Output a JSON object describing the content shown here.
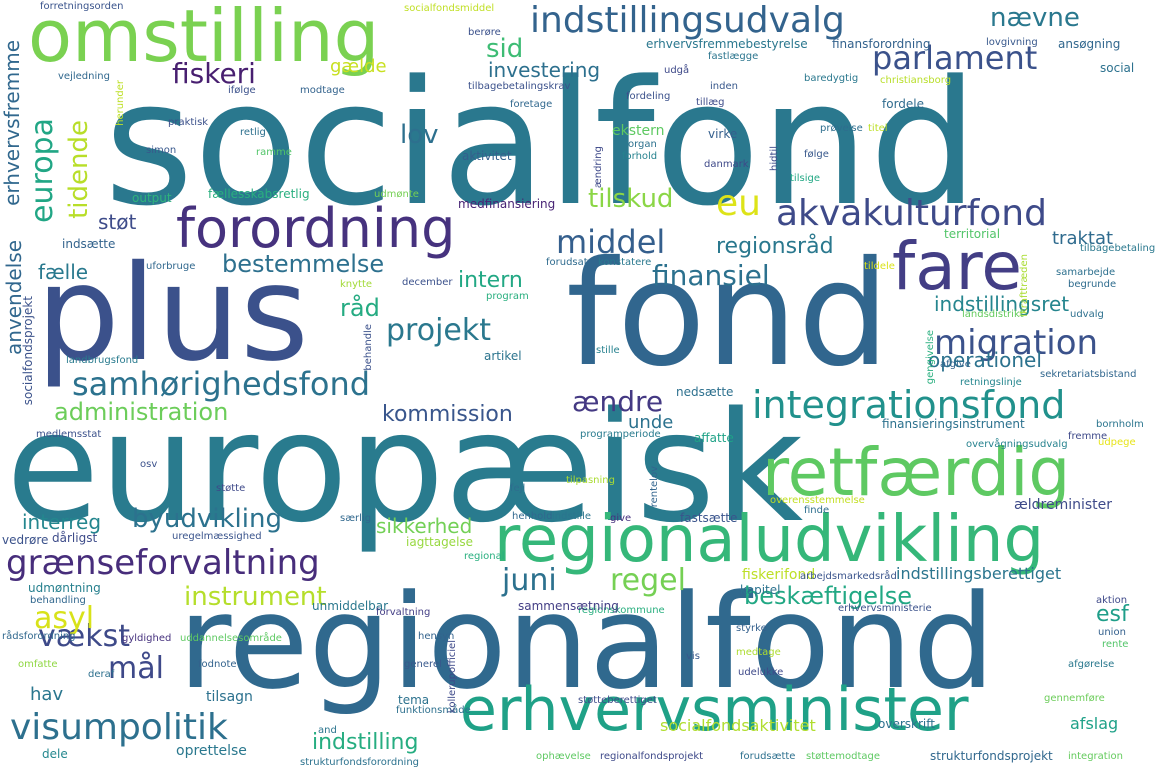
{
  "words": [
    {
      "text": "socialfond",
      "color": "#2a788e"
    },
    {
      "text": "europæisk",
      "color": "#297b8e"
    },
    {
      "text": "regionalfond",
      "color": "#30698e"
    },
    {
      "text": "fond",
      "color": "#31668e"
    },
    {
      "text": "plus",
      "color": "#3b518b"
    },
    {
      "text": "omstilling",
      "color": "#7ad151"
    },
    {
      "text": "retfærdig",
      "color": "#5ec962"
    },
    {
      "text": "regionaludvikling",
      "color": "#35b779"
    },
    {
      "text": "erhvervsminister",
      "color": "#1fa187"
    },
    {
      "text": "forordning",
      "color": "#46327e"
    },
    {
      "text": "fare",
      "color": "#433e85"
    },
    {
      "text": "indstillingsudvalg",
      "color": "#33638d"
    },
    {
      "text": "akvakulturfond",
      "color": "#3e4a89"
    },
    {
      "text": "integrationsfond",
      "color": "#21918c"
    },
    {
      "text": "grænseforvaltning",
      "color": "#472d7b"
    },
    {
      "text": "samhørighedsfond",
      "color": "#2c728e"
    },
    {
      "text": "visumpolitik",
      "color": "#2d708e"
    },
    {
      "text": "migration",
      "color": "#3b528b"
    },
    {
      "text": "parlament",
      "color": "#3b528b"
    },
    {
      "text": "middel",
      "color": "#355f8d"
    },
    {
      "text": "europa",
      "color": "#21a685"
    },
    {
      "text": "eu",
      "color": "#dde318"
    },
    {
      "text": "fiskeri",
      "color": "#481f70"
    },
    {
      "text": "projekt",
      "color": "#2a788e"
    },
    {
      "text": "byudvikling",
      "color": "#2c728e"
    },
    {
      "text": "instrument",
      "color": "#b5de2b"
    },
    {
      "text": "vækst",
      "color": "#3e4a89"
    },
    {
      "text": "regel",
      "color": "#75d054"
    },
    {
      "text": "tidende",
      "color": "#b8de29"
    },
    {
      "text": "finansiel",
      "color": "#2c718e"
    },
    {
      "text": "juni",
      "color": "#2c718e"
    },
    {
      "text": "mål",
      "color": "#3e4989"
    },
    {
      "text": "asyl",
      "color": "#d8e219"
    },
    {
      "text": "administration",
      "color": "#6ccd5a"
    },
    {
      "text": "kommission",
      "color": "#39568c"
    },
    {
      "text": "bestemmelse",
      "color": "#2d708e"
    },
    {
      "text": "beskæftigelse",
      "color": "#22a884"
    },
    {
      "text": "indstilling",
      "color": "#26ad81"
    },
    {
      "text": "ændre",
      "color": "#443983"
    },
    {
      "text": "råd",
      "color": "#25ab82"
    },
    {
      "text": "tilskud",
      "color": "#8bd646"
    },
    {
      "text": "regionsråd",
      "color": "#2a788e"
    },
    {
      "text": "intern",
      "color": "#22a884"
    },
    {
      "text": "operationel",
      "color": "#2c728e"
    },
    {
      "text": "indstillingsret",
      "color": "#25858e"
    },
    {
      "text": "lov",
      "color": "#2d708e"
    },
    {
      "text": "sid",
      "color": "#3dbc74"
    },
    {
      "text": "nævne",
      "color": "#2a788e"
    },
    {
      "text": "investering",
      "color": "#2d708e"
    },
    {
      "text": "gælde",
      "color": "#c8e020"
    },
    {
      "text": "traktat",
      "color": "#2f6b8e"
    },
    {
      "text": "interreg",
      "color": "#24868e"
    },
    {
      "text": "sikkerhed",
      "color": "#73d056"
    },
    {
      "text": "esf",
      "color": "#1f9e89"
    },
    {
      "text": "unde",
      "color": "#2c728e"
    },
    {
      "text": "støt",
      "color": "#3e4c8a"
    },
    {
      "text": "fælle",
      "color": "#29798e"
    },
    {
      "text": "hav",
      "color": "#2a768e"
    },
    {
      "text": "erhvervsfremme",
      "color": "#31688e"
    },
    {
      "text": "anvendelse",
      "color": "#31678e"
    },
    {
      "text": "fiskerifond",
      "color": "#bddf26"
    },
    {
      "text": "indstillingsberettiget",
      "color": "#2b758e"
    },
    {
      "text": "socialfondsaktivitet",
      "color": "#b0dd2f"
    },
    {
      "text": "afslag",
      "color": "#1fa188"
    },
    {
      "text": "forretningsorden",
      "color": "#3a548c"
    },
    {
      "text": "socialfondsmiddel",
      "color": "#c0df25"
    },
    {
      "text": "erhvervsfremmebestyrelse",
      "color": "#2a778e"
    },
    {
      "text": "finansforordning",
      "color": "#33628d"
    },
    {
      "text": "ansøgning",
      "color": "#31678e"
    },
    {
      "text": "social",
      "color": "#2c718e"
    },
    {
      "text": "lovgivning",
      "color": "#38588c"
    },
    {
      "text": "tilbagebetalingskrav",
      "color": "#3b518b"
    },
    {
      "text": "christiansborg",
      "color": "#b8de29"
    },
    {
      "text": "baredygtig",
      "color": "#2a788e"
    },
    {
      "text": "fordele",
      "color": "#2f6b8e"
    },
    {
      "text": "medfinansiering",
      "color": "#482475"
    },
    {
      "text": "fællesskabsretlig",
      "color": "#29af7f"
    },
    {
      "text": "aktivitet",
      "color": "#34608d"
    },
    {
      "text": "ekstern",
      "color": "#5ec962"
    },
    {
      "text": "virke",
      "color": "#355f8d"
    },
    {
      "text": "prøvelse",
      "color": "#2e6e8e"
    },
    {
      "text": "danmark",
      "color": "#3e4989"
    },
    {
      "text": "output",
      "color": "#2fb47c"
    },
    {
      "text": "territorial",
      "color": "#52c569"
    },
    {
      "text": "samarbejde",
      "color": "#2d708e"
    },
    {
      "text": "begrunde",
      "color": "#2f6c8e"
    },
    {
      "text": "tildele",
      "color": "#dae319"
    },
    {
      "text": "konstatere",
      "color": "#2a788e"
    },
    {
      "text": "forudsat",
      "color": "#2f6b8e"
    },
    {
      "text": "december",
      "color": "#3b518b"
    },
    {
      "text": "knytte",
      "color": "#a2da37"
    },
    {
      "text": "program",
      "color": "#29af7f"
    },
    {
      "text": "artikel",
      "color": "#2b748e"
    },
    {
      "text": "stille",
      "color": "#26818e"
    },
    {
      "text": "landsdistrikt",
      "color": "#65cb5e"
    },
    {
      "text": "udvalg",
      "color": "#2d708e"
    },
    {
      "text": "afgive",
      "color": "#33638d"
    },
    {
      "text": "sekretariatsbistand",
      "color": "#31678e"
    },
    {
      "text": "retningslinje",
      "color": "#24868e"
    },
    {
      "text": "nedsætte",
      "color": "#2d708e"
    },
    {
      "text": "medlemsstat",
      "color": "#3b518b"
    },
    {
      "text": "programperiode",
      "color": "#297b8e"
    },
    {
      "text": "affatte",
      "color": "#1fa287"
    },
    {
      "text": "finansieringsinstrument",
      "color": "#2c718e"
    },
    {
      "text": "bornholm",
      "color": "#2b758e"
    },
    {
      "text": "fremme",
      "color": "#3e4989"
    },
    {
      "text": "overvågningsudvalg",
      "color": "#26828e"
    },
    {
      "text": "udpege",
      "color": "#e7e419"
    },
    {
      "text": "ældreminister",
      "color": "#3e4a89"
    },
    {
      "text": "fastsætte",
      "color": "#3a548c"
    },
    {
      "text": "henhold",
      "color": "#31688e"
    },
    {
      "text": "indstille",
      "color": "#2b758e"
    },
    {
      "text": "overensstemmelse",
      "color": "#c2df23"
    },
    {
      "text": "finde",
      "color": "#2e6f8e"
    },
    {
      "text": "give",
      "color": "#46317e"
    },
    {
      "text": "tilpasning",
      "color": "#aadc32"
    },
    {
      "text": "rentelov",
      "color": "#32658e"
    },
    {
      "text": "fejl",
      "color": "#2e6e8e"
    },
    {
      "text": "dårligst",
      "color": "#3e4c8a"
    },
    {
      "text": "særlig",
      "color": "#31688e"
    },
    {
      "text": "iagttagelse",
      "color": "#97d83f"
    },
    {
      "text": "uregelmæssighed",
      "color": "#3a548c"
    },
    {
      "text": "vedrøre",
      "color": "#3b528b"
    },
    {
      "text": "regional",
      "color": "#29af7f"
    },
    {
      "text": "udmøntning",
      "color": "#27808e"
    },
    {
      "text": "behandling",
      "color": "#31678e"
    },
    {
      "text": "unmiddelbar",
      "color": "#2a788e"
    },
    {
      "text": "kapitel",
      "color": "#2c728e"
    },
    {
      "text": "arbejdsmarkedsråd",
      "color": "#3a548c"
    },
    {
      "text": "regionskommune",
      "color": "#29af7f"
    },
    {
      "text": "sammensætning",
      "color": "#433e85"
    },
    {
      "text": "forvaltning",
      "color": "#433e85"
    },
    {
      "text": "aktion",
      "color": "#3e4989"
    },
    {
      "text": "union",
      "color": "#34608d"
    },
    {
      "text": "rente",
      "color": "#52c569"
    },
    {
      "text": "erhvervsministerie",
      "color": "#3b528b"
    },
    {
      "text": "styrke",
      "color": "#34608d"
    },
    {
      "text": "medtage",
      "color": "#addc30"
    },
    {
      "text": "vis",
      "color": "#38588c"
    },
    {
      "text": "udelukke",
      "color": "#3e4989"
    },
    {
      "text": "afgørelse",
      "color": "#2a788e"
    },
    {
      "text": "gennemføre",
      "color": "#6ccd5a"
    },
    {
      "text": "hensyn",
      "color": "#33638d"
    },
    {
      "text": "generel",
      "color": "#38588c"
    },
    {
      "text": "fodnote",
      "color": "#33638d"
    },
    {
      "text": "tilsagn",
      "color": "#2c718e"
    },
    {
      "text": "tema",
      "color": "#2c728e"
    },
    {
      "text": "funktionsmåde",
      "color": "#2d708e"
    },
    {
      "text": "støtteberettiget",
      "color": "#3e4c8a"
    },
    {
      "text": "overskrift",
      "color": "#2c718e"
    },
    {
      "text": "oprettelse",
      "color": "#2a788e"
    },
    {
      "text": "dele",
      "color": "#24878e"
    },
    {
      "text": "and",
      "color": "#2b758e"
    },
    {
      "text": "strukturfondsforordning",
      "color": "#2c728e"
    },
    {
      "text": "ophævelse",
      "color": "#5ec962"
    },
    {
      "text": "regionalfondsprojekt",
      "color": "#3e4989"
    },
    {
      "text": "forudsætte",
      "color": "#2d708e"
    },
    {
      "text": "støttemodtage",
      "color": "#5ec962"
    },
    {
      "text": "strukturfondsprojekt",
      "color": "#31688e"
    },
    {
      "text": "integration",
      "color": "#65cb5e"
    },
    {
      "text": "gyldighed",
      "color": "#46327e"
    },
    {
      "text": "uddannelsesområde",
      "color": "#5ec962"
    },
    {
      "text": "rådsforordning",
      "color": "#31688e"
    },
    {
      "text": "omfatte",
      "color": "#90d743"
    },
    {
      "text": "deraf",
      "color": "#2d708e"
    },
    {
      "text": "socialfondsprojekt",
      "color": "#3b528b"
    },
    {
      "text": "landbrugsfond",
      "color": "#297b8e"
    },
    {
      "text": "indsætte",
      "color": "#33638d"
    },
    {
      "text": "uforbruge",
      "color": "#31688e"
    },
    {
      "text": "osv",
      "color": "#3b518b"
    },
    {
      "text": "støtte",
      "color": "#3e4989"
    },
    {
      "text": "vejledning",
      "color": "#31688e"
    },
    {
      "text": "herunder",
      "color": "#bddf26"
    },
    {
      "text": "praktisk",
      "color": "#3b518b"
    },
    {
      "text": "simon",
      "color": "#38588c"
    },
    {
      "text": "ifølge",
      "color": "#3b518b"
    },
    {
      "text": "modtage",
      "color": "#33638d"
    },
    {
      "text": "retlig",
      "color": "#2d708e"
    },
    {
      "text": "ramme",
      "color": "#52c569"
    },
    {
      "text": "ændring",
      "color": "#3e4989"
    },
    {
      "text": "organ",
      "color": "#2c718e"
    },
    {
      "text": "forhold",
      "color": "#26828e"
    },
    {
      "text": "hidtil",
      "color": "#3e4c8a"
    },
    {
      "text": "følge",
      "color": "#38588c"
    },
    {
      "text": "tilsige",
      "color": "#22a884"
    },
    {
      "text": "titel",
      "color": "#bddf26"
    },
    {
      "text": "foretage",
      "color": "#31688e"
    },
    {
      "text": "fordeling",
      "color": "#3b518b"
    },
    {
      "text": "inden",
      "color": "#38588c"
    },
    {
      "text": "tillæg",
      "color": "#3e4c8a"
    },
    {
      "text": "udgå",
      "color": "#3e4989"
    },
    {
      "text": "fastlægge",
      "color": "#2b758e"
    },
    {
      "text": "berøre",
      "color": "#3b518b"
    },
    {
      "text": "tilbagebetaling",
      "color": "#2a788e"
    },
    {
      "text": "ikrafttræden",
      "color": "#aadc32"
    },
    {
      "text": "udmønte",
      "color": "#75d054"
    },
    {
      "text": "kollerupofficiel",
      "color": "#3e4989"
    },
    {
      "text": "behandle",
      "color": "#3b518b"
    },
    {
      "text": "gengivelse",
      "color": "#29af7f"
    }
  ]
}
